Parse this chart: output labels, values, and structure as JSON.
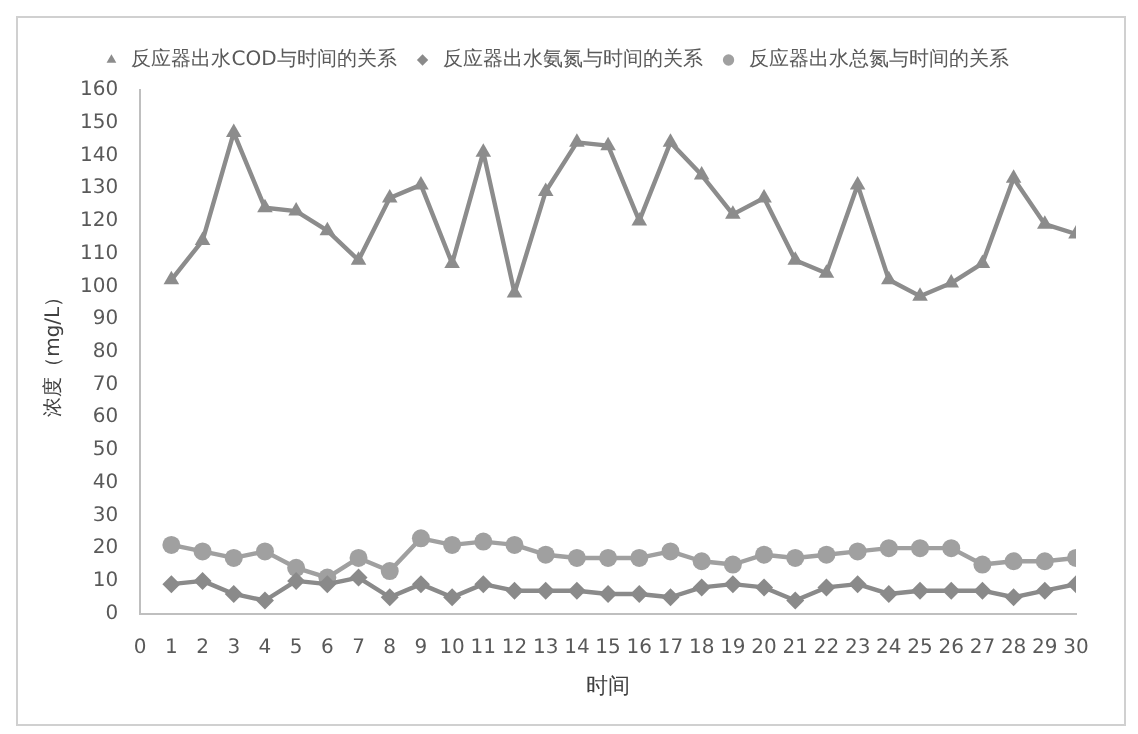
{
  "chart_data": {
    "type": "line",
    "xlabel": "时间",
    "ylabel": "浓度（mg/L）",
    "x": [
      1,
      2,
      3,
      4,
      5,
      6,
      7,
      8,
      9,
      10,
      11,
      12,
      13,
      14,
      15,
      16,
      17,
      18,
      19,
      20,
      21,
      22,
      23,
      24,
      25,
      26,
      27,
      28,
      29,
      30
    ],
    "series": [
      {
        "name": "反应器出水COD与时间的关系",
        "color": "#8c8c8c",
        "marker": "triangle",
        "values": [
          102,
          114,
          147,
          124,
          123,
          117,
          108,
          127,
          131,
          107,
          141,
          98,
          129,
          144,
          143,
          120,
          144,
          134,
          122,
          127,
          108,
          104,
          131,
          102,
          97,
          101,
          107,
          133,
          119,
          116
        ]
      },
      {
        "name": "反应器出水氨氮与时间的关系",
        "color": "#8a8a8a",
        "marker": "diamond",
        "values": [
          9,
          10,
          6,
          4,
          10,
          9,
          11,
          5,
          9,
          5,
          9,
          7,
          7,
          7,
          6,
          6,
          5,
          8,
          9,
          8,
          4,
          8,
          9,
          6,
          7,
          7,
          7,
          5,
          7,
          9
        ]
      },
      {
        "name": "反应器出水总氮与时间的关系",
        "color": "#a0a0a0",
        "marker": "circle",
        "values": [
          21,
          19,
          17,
          19,
          14,
          11,
          17,
          13,
          23,
          21,
          22,
          21,
          18,
          17,
          17,
          17,
          19,
          16,
          15,
          18,
          17,
          18,
          19,
          20,
          20,
          20,
          15,
          16,
          16,
          17
        ]
      }
    ],
    "xlim": [
      0,
      30
    ],
    "xticks": [
      0,
      1,
      2,
      3,
      4,
      5,
      6,
      7,
      8,
      9,
      10,
      11,
      12,
      13,
      14,
      15,
      16,
      17,
      18,
      19,
      20,
      21,
      22,
      23,
      24,
      25,
      26,
      27,
      28,
      29,
      30
    ],
    "ylim": [
      0,
      160
    ],
    "yticks": [
      0,
      10,
      20,
      30,
      40,
      50,
      60,
      70,
      80,
      90,
      100,
      110,
      120,
      130,
      140,
      150,
      160
    ],
    "grid": false,
    "legend": "top",
    "line_style": "solid"
  }
}
